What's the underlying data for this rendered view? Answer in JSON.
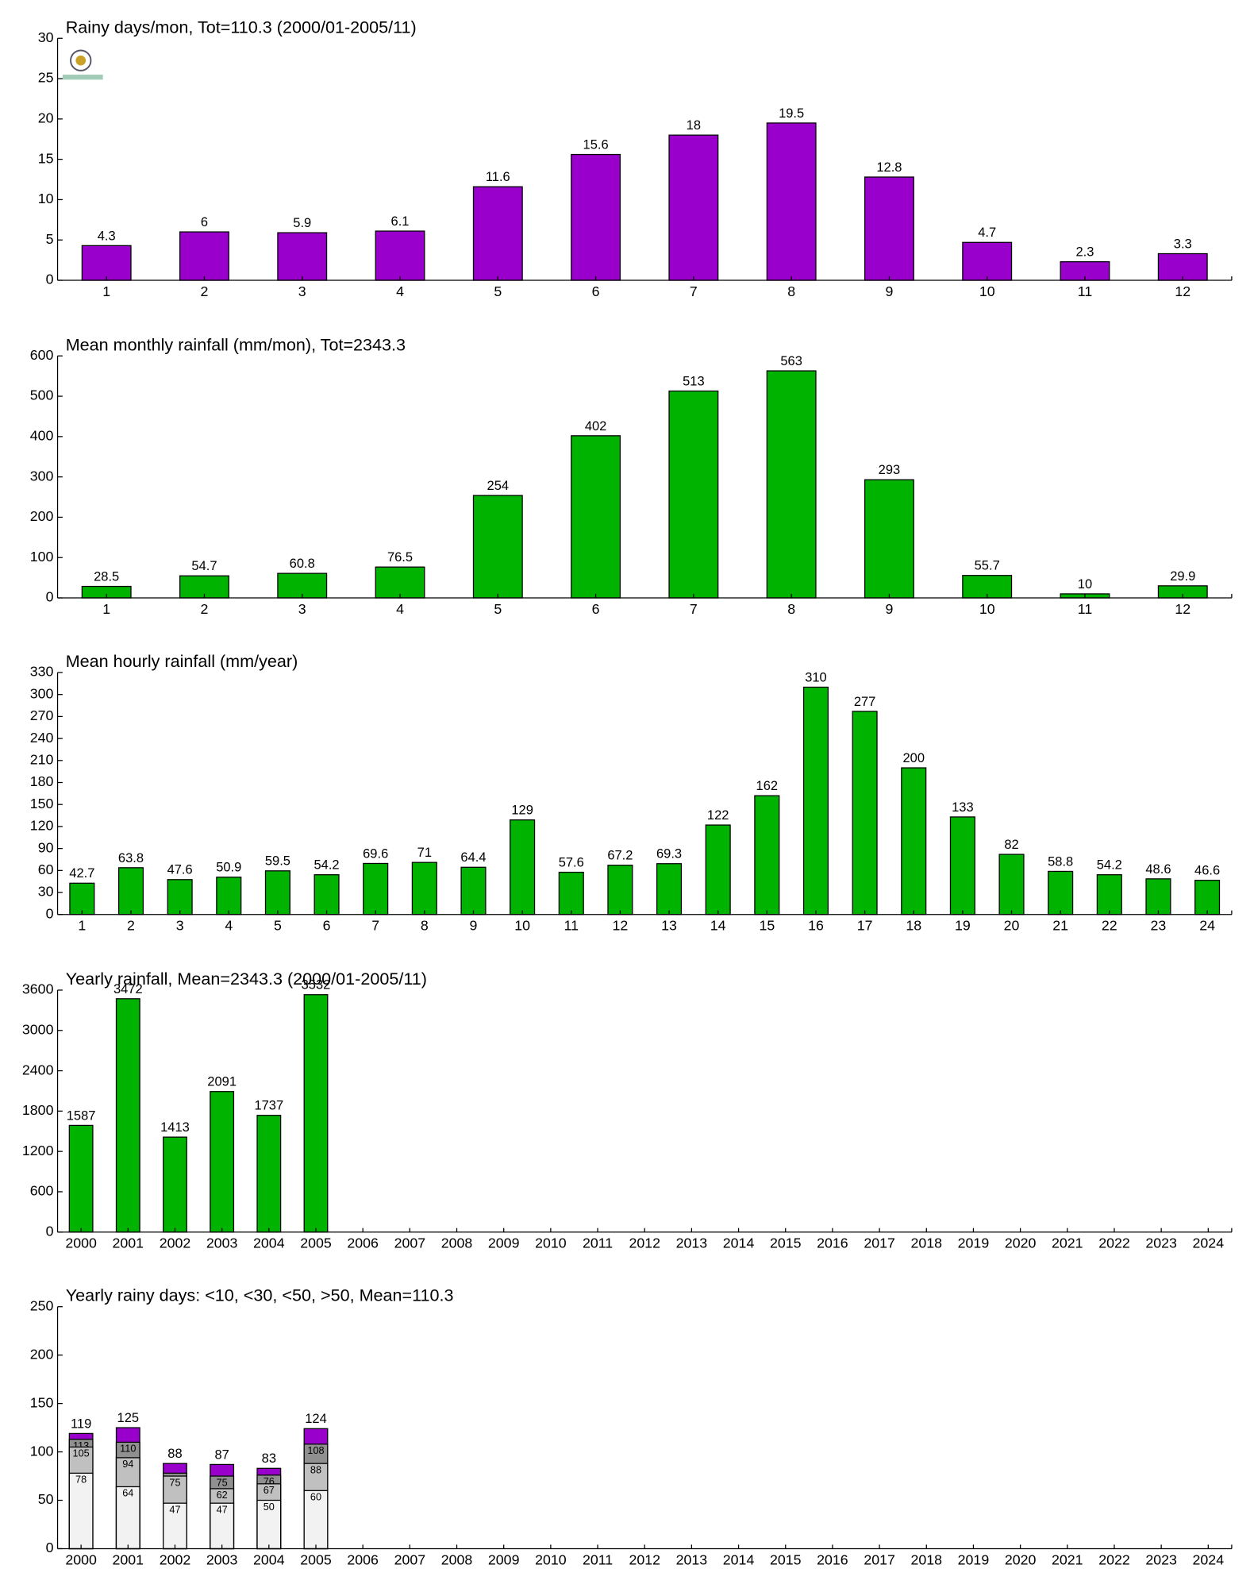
{
  "chart_data": [
    {
      "type": "bar",
      "title": "Rainy days/mon, Tot=110.3 (2000/01-2005/11)",
      "categories": [
        1,
        2,
        3,
        4,
        5,
        6,
        7,
        8,
        9,
        10,
        11,
        12
      ],
      "values": [
        4.3,
        6,
        5.9,
        6.1,
        11.6,
        15.6,
        18,
        19.5,
        12.8,
        4.7,
        2.3,
        3.3
      ],
      "color": "#9900cc",
      "ylim": [
        0,
        30
      ],
      "yticks": [
        0,
        5,
        10,
        15,
        20,
        25,
        30
      ]
    },
    {
      "type": "bar",
      "title": "Mean monthly rainfall (mm/mon), Tot=2343.3",
      "categories": [
        1,
        2,
        3,
        4,
        5,
        6,
        7,
        8,
        9,
        10,
        11,
        12
      ],
      "values": [
        28.5,
        54.7,
        60.8,
        76.5,
        254,
        402,
        513,
        563,
        293,
        55.7,
        10,
        29.9
      ],
      "color": "#00b300",
      "ylim": [
        0,
        600
      ],
      "yticks": [
        0,
        100,
        200,
        300,
        400,
        500,
        600
      ]
    },
    {
      "type": "bar",
      "title": "Mean hourly rainfall (mm/year)",
      "categories": [
        1,
        2,
        3,
        4,
        5,
        6,
        7,
        8,
        9,
        10,
        11,
        12,
        13,
        14,
        15,
        16,
        17,
        18,
        19,
        20,
        21,
        22,
        23,
        24
      ],
      "values": [
        42.7,
        63.8,
        47.6,
        50.9,
        59.5,
        54.2,
        69.6,
        71,
        64.4,
        129,
        57.6,
        67.2,
        69.3,
        122,
        162,
        310,
        277,
        200,
        133,
        82,
        58.8,
        54.2,
        48.6,
        46.6
      ],
      "color": "#00b300",
      "ylim": [
        0,
        330
      ],
      "yticks": [
        0,
        30,
        60,
        90,
        120,
        150,
        180,
        210,
        240,
        270,
        300,
        330
      ]
    },
    {
      "type": "bar",
      "title": "Yearly rainfall, Mean=2343.3 (2000/01-2005/11)",
      "categories": [
        "2000",
        "2001",
        "2002",
        "2003",
        "2004",
        "2005",
        "2006",
        "2007",
        "2008",
        "2009",
        "2010",
        "2011",
        "2012",
        "2013",
        "2014",
        "2015",
        "2016",
        "2017",
        "2018",
        "2019",
        "2020",
        "2021",
        "2022",
        "2023",
        "2024"
      ],
      "values": [
        1587,
        3472,
        1413,
        2091,
        1737,
        3532,
        null,
        null,
        null,
        null,
        null,
        null,
        null,
        null,
        null,
        null,
        null,
        null,
        null,
        null,
        null,
        null,
        null,
        null,
        null
      ],
      "color": "#00b300",
      "ylim": [
        0,
        3600
      ],
      "yticks": [
        0,
        600,
        1200,
        1800,
        2400,
        3000,
        3600
      ]
    },
    {
      "type": "overlap-bar",
      "title": "Yearly rainy days: <10, <30, <50, >50, Mean=110.3",
      "categories": [
        "2000",
        "2001",
        "2002",
        "2003",
        "2004",
        "2005",
        "2006",
        "2007",
        "2008",
        "2009",
        "2010",
        "2011",
        "2012",
        "2013",
        "2014",
        "2015",
        "2016",
        "2017",
        "2018",
        "2019",
        "2020",
        "2021",
        "2022",
        "2023",
        "2024"
      ],
      "series": [
        {
          "color": "#9900cc",
          "values": [
            119,
            125,
            88,
            87,
            83,
            124,
            null,
            null,
            null,
            null,
            null,
            null,
            null,
            null,
            null,
            null,
            null,
            null,
            null,
            null,
            null,
            null,
            null,
            null,
            null
          ]
        },
        {
          "color": "#909090",
          "values": [
            113,
            110,
            78,
            75,
            76,
            108,
            null,
            null,
            null,
            null,
            null,
            null,
            null,
            null,
            null,
            null,
            null,
            null,
            null,
            null,
            null,
            null,
            null,
            null,
            null
          ]
        },
        {
          "color": "#c0c0c0",
          "values": [
            105,
            94,
            75,
            62,
            67,
            88,
            null,
            null,
            null,
            null,
            null,
            null,
            null,
            null,
            null,
            null,
            null,
            null,
            null,
            null,
            null,
            null,
            null,
            null,
            null
          ]
        },
        {
          "color": "#f2f2f2",
          "values": [
            78,
            64,
            47,
            47,
            50,
            60,
            null,
            null,
            null,
            null,
            null,
            null,
            null,
            null,
            null,
            null,
            null,
            null,
            null,
            null,
            null,
            null,
            null,
            null,
            null
          ]
        }
      ],
      "ylim": [
        0,
        250
      ],
      "yticks": [
        0,
        50,
        100,
        150,
        200,
        250
      ]
    }
  ]
}
